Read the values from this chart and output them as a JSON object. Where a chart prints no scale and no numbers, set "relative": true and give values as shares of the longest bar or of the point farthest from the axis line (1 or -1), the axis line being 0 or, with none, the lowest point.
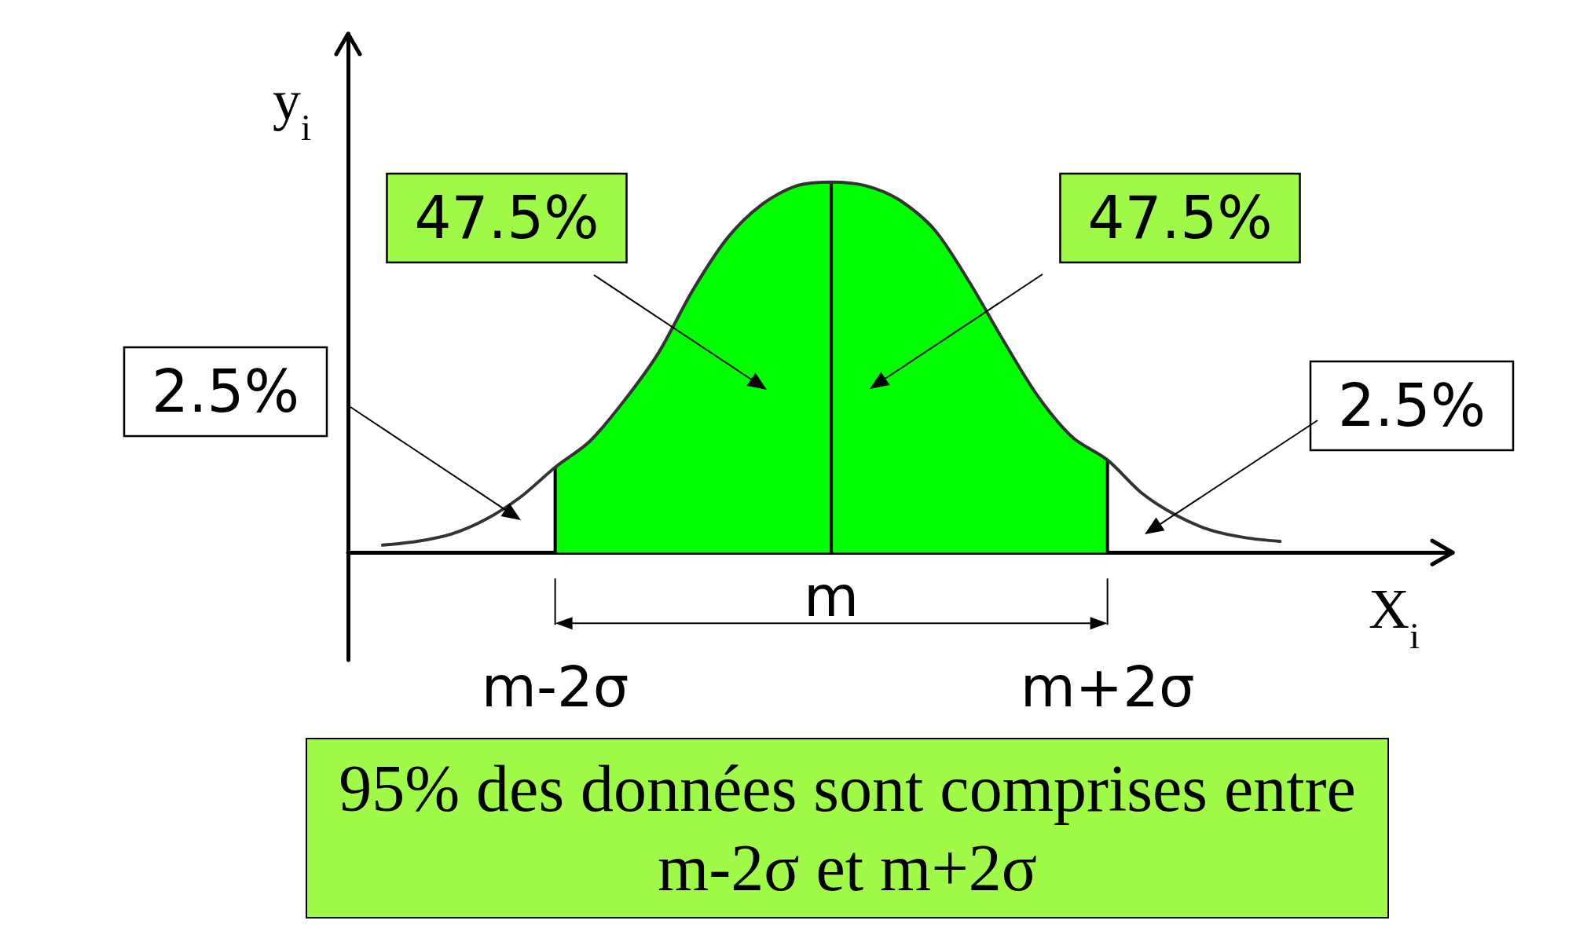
{
  "chart_data": {
    "type": "line",
    "relative": true,
    "xlabel": "X$_{i}$",
    "ylabel": "y$_{i}$",
    "categories": [
      null,
      null,
      null,
      null,
      null,
      null,
      "m-2σ",
      null,
      null,
      null,
      null,
      null,
      null,
      null,
      null,
      null,
      null,
      null,
      null,
      null,
      null,
      null,
      "m+2σ",
      null,
      null,
      null,
      null,
      null,
      null,
      null,
      null,
      null,
      null
    ],
    "series": [
      {
        "type": "area",
        "color": "#00ff00",
        "values": [
          null,
          null,
          null,
          null,
          null,
          null,
          0.23,
          0.3,
          0.41,
          0.54,
          0.71,
          0.85,
          0.94,
          0.99,
          1,
          0.99,
          0.95,
          0.87,
          0.73,
          0.57,
          0.42,
          0.31,
          0.25,
          null,
          null,
          null,
          null,
          null,
          null,
          null,
          null,
          null,
          null
        ]
      },
      {
        "type": "bar",
        "color": "#000000",
        "values": [
          null,
          null,
          null,
          null,
          null,
          null,
          0.23,
          null,
          null,
          null,
          null,
          null,
          null,
          null,
          1,
          null,
          null,
          null,
          null,
          null,
          null,
          null,
          0.25,
          null,
          null,
          null,
          null,
          null,
          null,
          null,
          null,
          null,
          null
        ]
      },
      {
        "color": "#333333",
        "values": [
          null,
          0.02,
          0.03,
          0.05,
          0.09,
          0.15,
          0.23,
          0.3,
          0.41,
          0.54,
          0.71,
          0.85,
          0.94,
          0.99,
          1,
          0.99,
          0.95,
          0.87,
          0.73,
          0.57,
          0.42,
          0.31,
          0.25,
          0.16,
          0.1,
          0.06,
          0.04,
          0.03,
          null,
          null,
          null,
          null,
          null
        ]
      }
    ],
    "annotations": [
      "47.5%",
      "47.5%",
      "2.5%",
      "2.5%",
      "m",
      "95% des données sont comprises entre m-2σ et m+2σ"
    ]
  }
}
